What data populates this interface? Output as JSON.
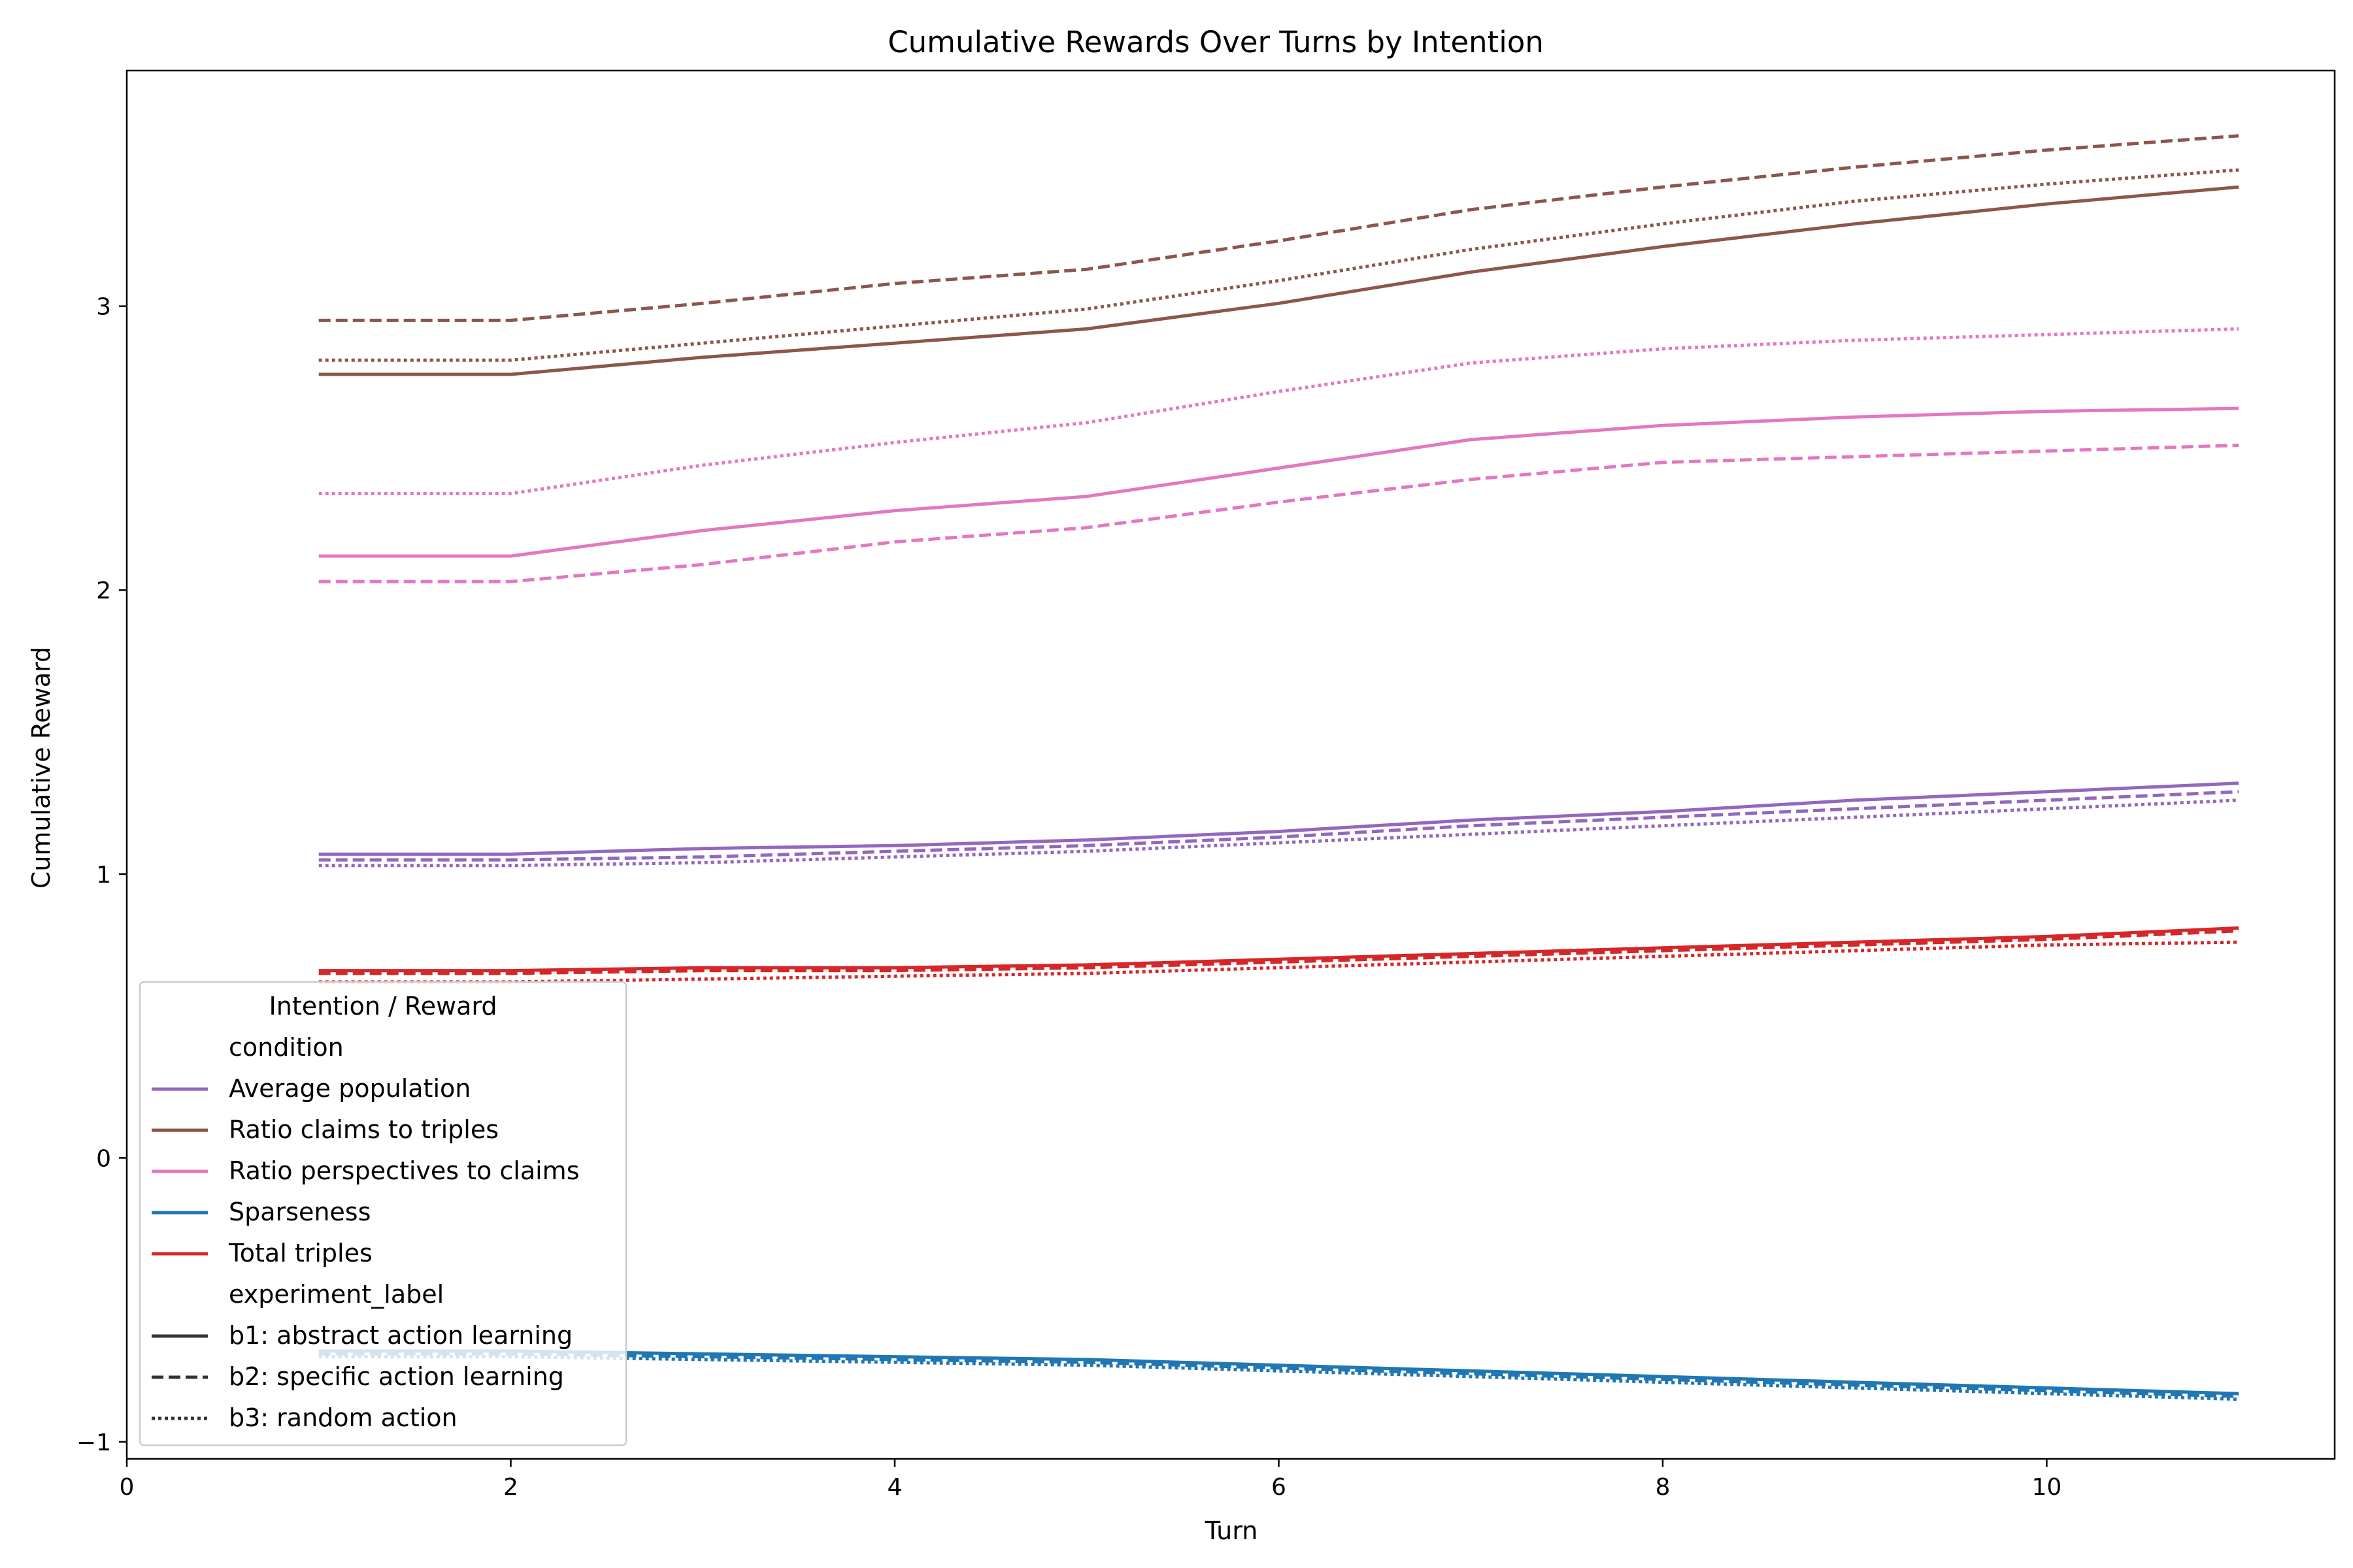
{
  "chart_data": {
    "type": "line",
    "title": "Cumulative Rewards Over Turns by Intention",
    "xlabel": "Turn",
    "ylabel": "Cumulative Reward",
    "xlim": [
      0,
      11.5
    ],
    "ylim": [
      -1.06,
      3.83
    ],
    "xticks": [
      0,
      2,
      4,
      6,
      8,
      10
    ],
    "yticks": [
      -1,
      0,
      1,
      2,
      3
    ],
    "grid": false,
    "legend": {
      "title": "Intention / Reward",
      "placement": "lower-left",
      "hue_header": "condition",
      "style_header": "experiment_label",
      "styles": [
        {
          "name": "b1: abstract action learning",
          "dash": "solid"
        },
        {
          "name": "b2: specific action learning",
          "dash": "dashed"
        },
        {
          "name": "b3: random action",
          "dash": "dotted"
        }
      ]
    },
    "x": [
      1,
      2,
      3,
      4,
      5,
      6,
      7,
      8,
      9,
      10,
      11
    ],
    "series": [
      {
        "name": "Average population",
        "color": "#9467bd",
        "style": "b1: abstract action learning",
        "values": [
          1.07,
          1.07,
          1.09,
          1.1,
          1.12,
          1.15,
          1.19,
          1.22,
          1.26,
          1.29,
          1.32
        ]
      },
      {
        "name": "Average population",
        "color": "#9467bd",
        "style": "b2: specific action learning",
        "values": [
          1.05,
          1.05,
          1.06,
          1.08,
          1.1,
          1.13,
          1.17,
          1.2,
          1.23,
          1.26,
          1.29
        ]
      },
      {
        "name": "Average population",
        "color": "#9467bd",
        "style": "b3: random action",
        "values": [
          1.03,
          1.03,
          1.04,
          1.06,
          1.08,
          1.11,
          1.14,
          1.17,
          1.2,
          1.23,
          1.26
        ]
      },
      {
        "name": "Ratio claims to triples",
        "color": "#8c564b",
        "style": "b1: abstract action learning",
        "values": [
          2.76,
          2.76,
          2.82,
          2.87,
          2.92,
          3.01,
          3.12,
          3.21,
          3.29,
          3.36,
          3.42
        ]
      },
      {
        "name": "Ratio claims to triples",
        "color": "#8c564b",
        "style": "b2: specific action learning",
        "values": [
          2.95,
          2.95,
          3.01,
          3.08,
          3.13,
          3.23,
          3.34,
          3.42,
          3.49,
          3.55,
          3.6
        ]
      },
      {
        "name": "Ratio claims to triples",
        "color": "#8c564b",
        "style": "b3: random action",
        "values": [
          2.81,
          2.81,
          2.87,
          2.93,
          2.99,
          3.09,
          3.2,
          3.29,
          3.37,
          3.43,
          3.48
        ]
      },
      {
        "name": "Ratio perspectives to claims",
        "color": "#e377c2",
        "style": "b1: abstract action learning",
        "values": [
          2.12,
          2.12,
          2.21,
          2.28,
          2.33,
          2.43,
          2.53,
          2.58,
          2.61,
          2.63,
          2.64
        ]
      },
      {
        "name": "Ratio perspectives to claims",
        "color": "#e377c2",
        "style": "b2: specific action learning",
        "values": [
          2.03,
          2.03,
          2.09,
          2.17,
          2.22,
          2.31,
          2.39,
          2.45,
          2.47,
          2.49,
          2.51
        ]
      },
      {
        "name": "Ratio perspectives to claims",
        "color": "#e377c2",
        "style": "b3: random action",
        "values": [
          2.34,
          2.34,
          2.44,
          2.52,
          2.59,
          2.7,
          2.8,
          2.85,
          2.88,
          2.9,
          2.92
        ]
      },
      {
        "name": "Sparseness",
        "color": "#1f77b4",
        "style": "b1: abstract action learning",
        "values": [
          -0.68,
          -0.68,
          -0.69,
          -0.7,
          -0.71,
          -0.73,
          -0.75,
          -0.77,
          -0.79,
          -0.81,
          -0.83
        ]
      },
      {
        "name": "Sparseness",
        "color": "#1f77b4",
        "style": "b2: specific action learning",
        "values": [
          -0.69,
          -0.69,
          -0.7,
          -0.71,
          -0.72,
          -0.74,
          -0.76,
          -0.78,
          -0.8,
          -0.82,
          -0.84
        ]
      },
      {
        "name": "Sparseness",
        "color": "#1f77b4",
        "style": "b3: random action",
        "values": [
          -0.7,
          -0.7,
          -0.71,
          -0.72,
          -0.73,
          -0.75,
          -0.77,
          -0.79,
          -0.81,
          -0.83,
          -0.85
        ]
      },
      {
        "name": "Total triples",
        "color": "#d62728",
        "style": "b1: abstract action learning",
        "values": [
          0.66,
          0.66,
          0.67,
          0.67,
          0.68,
          0.7,
          0.72,
          0.74,
          0.76,
          0.78,
          0.81
        ]
      },
      {
        "name": "Total triples",
        "color": "#d62728",
        "style": "b2: specific action learning",
        "values": [
          0.65,
          0.65,
          0.66,
          0.66,
          0.67,
          0.69,
          0.71,
          0.73,
          0.75,
          0.77,
          0.8
        ]
      },
      {
        "name": "Total triples",
        "color": "#d62728",
        "style": "b3: random action",
        "values": [
          0.62,
          0.62,
          0.63,
          0.64,
          0.65,
          0.67,
          0.69,
          0.71,
          0.73,
          0.75,
          0.76
        ]
      }
    ],
    "conditions": [
      {
        "name": "Average population",
        "color": "#9467bd"
      },
      {
        "name": "Ratio claims to triples",
        "color": "#8c564b"
      },
      {
        "name": "Ratio perspectives to claims",
        "color": "#e377c2"
      },
      {
        "name": "Sparseness",
        "color": "#1f77b4"
      },
      {
        "name": "Total triples",
        "color": "#d62728"
      }
    ]
  }
}
